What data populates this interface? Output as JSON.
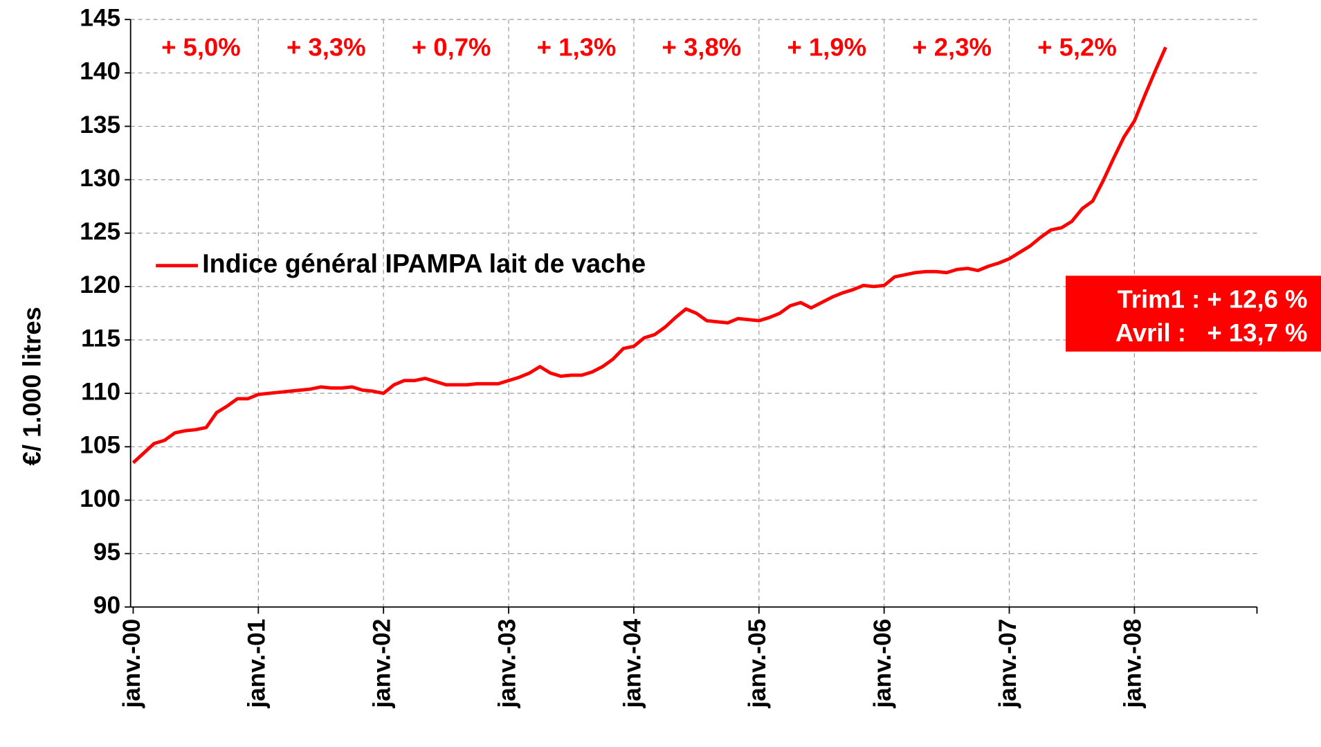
{
  "chart_data": {
    "type": "line",
    "y_axis_label": "€/ 1.000 litres",
    "categories": [
      "janv.-00",
      null,
      null,
      null,
      null,
      null,
      null,
      null,
      null,
      null,
      null,
      null,
      "janv.-01",
      null,
      null,
      null,
      null,
      null,
      null,
      null,
      null,
      null,
      null,
      null,
      "janv.-02",
      null,
      null,
      null,
      null,
      null,
      null,
      null,
      null,
      null,
      null,
      null,
      "janv.-03",
      null,
      null,
      null,
      null,
      null,
      null,
      null,
      null,
      null,
      null,
      null,
      "janv.-04",
      null,
      null,
      null,
      null,
      null,
      null,
      null,
      null,
      null,
      null,
      null,
      "janv.-05",
      null,
      null,
      null,
      null,
      null,
      null,
      null,
      null,
      null,
      null,
      null,
      "janv.-06",
      null,
      null,
      null,
      null,
      null,
      null,
      null,
      null,
      null,
      null,
      null,
      "janv.-07",
      null,
      null,
      null,
      null,
      null,
      null,
      null,
      null,
      null,
      null,
      null,
      "janv.-08",
      null,
      null,
      null
    ],
    "series": [
      {
        "name": "Indice général IPAMPA lait de vache",
        "color": "#ff0000",
        "values": [
          103.5,
          104.4,
          105.3,
          105.6,
          106.3,
          106.5,
          106.6,
          106.8,
          108.2,
          108.8,
          109.5,
          109.5,
          109.9,
          110.0,
          110.1,
          110.2,
          110.3,
          110.4,
          110.6,
          110.5,
          110.5,
          110.6,
          110.3,
          110.2,
          110.0,
          110.8,
          111.2,
          111.2,
          111.4,
          111.1,
          110.8,
          110.8,
          110.8,
          110.9,
          110.9,
          110.9,
          111.2,
          111.5,
          111.9,
          112.5,
          111.9,
          111.6,
          111.7,
          111.7,
          112.0,
          112.5,
          113.2,
          114.2,
          114.4,
          115.2,
          115.5,
          116.2,
          117.1,
          117.9,
          117.5,
          116.8,
          116.7,
          116.6,
          117.0,
          116.9,
          116.8,
          117.1,
          117.5,
          118.2,
          118.5,
          118.0,
          118.5,
          119.0,
          119.4,
          119.7,
          120.1,
          120.0,
          120.1,
          120.9,
          121.1,
          121.3,
          121.4,
          121.4,
          121.3,
          121.6,
          121.7,
          121.5,
          121.9,
          122.2,
          122.6,
          123.2,
          123.8,
          124.6,
          125.3,
          125.5,
          126.1,
          127.3,
          128.0,
          129.9,
          132.0,
          134.0,
          135.5,
          137.9,
          140.2,
          142.4
        ]
      }
    ],
    "ylim": [
      90,
      145
    ],
    "yticks": [
      90,
      95,
      100,
      105,
      110,
      115,
      120,
      125,
      130,
      135,
      140,
      145
    ],
    "grid": true,
    "legend": "upper-left",
    "annotations": [
      "+ 5,0%",
      "+ 3,3%",
      "+ 0,7%",
      "+ 1,3%",
      "+ 3,8%",
      "+ 1,9%",
      "+ 2,3%",
      "+ 5,2%"
    ],
    "box_annotations": [
      "Trim1 : + 12,6 %",
      "Avril :   + 13,7 %"
    ]
  }
}
